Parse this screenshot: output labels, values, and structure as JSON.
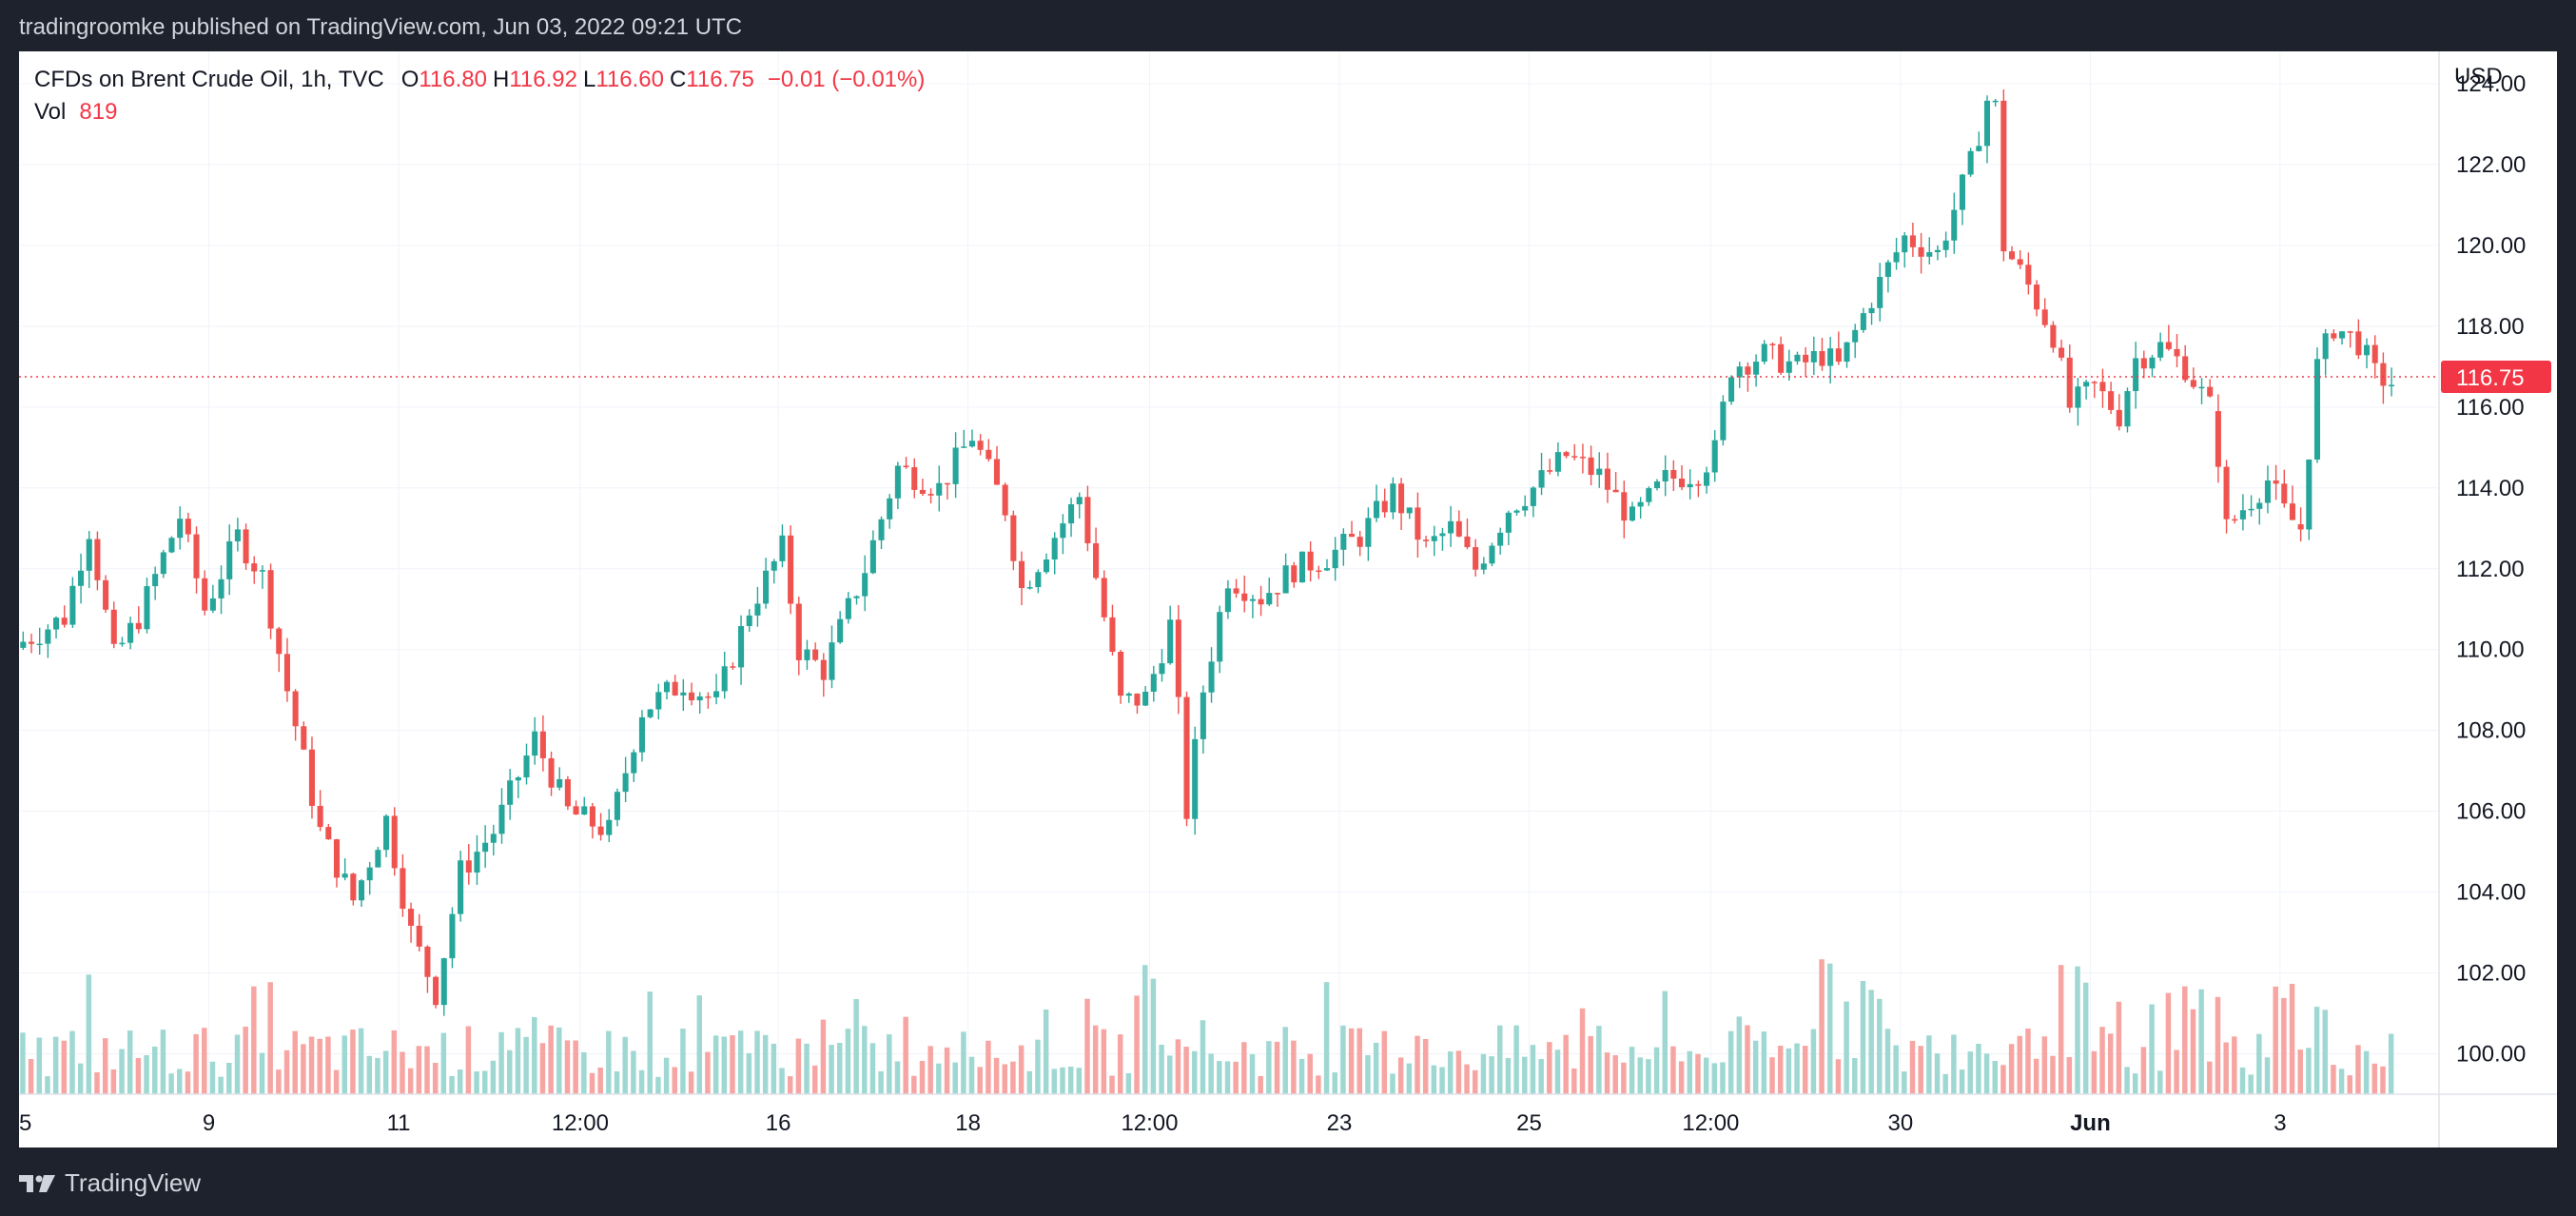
{
  "header": {
    "published_text": "tradingroomke published on TradingView.com, Jun 03, 2022 09:21 UTC"
  },
  "legend": {
    "symbol": "CFDs on Brent Crude Oil, 1h, TVC",
    "open_label": "O",
    "open": "116.80",
    "high_label": "H",
    "high": "116.92",
    "low_label": "L",
    "low": "116.60",
    "close_label": "C",
    "close": "116.75",
    "change": "−0.01 (−0.01%)",
    "vol_label": "Vol",
    "vol": "819"
  },
  "footer": {
    "brand": "TradingView"
  },
  "colors": {
    "up": "#26a69a",
    "down": "#ef5350",
    "up_vol": "#9fd8d2",
    "down_vol": "#f6a5a2",
    "grid": "#f0f3fa",
    "last_price": "#f23645"
  },
  "chart_data": {
    "type": "candlestick",
    "title": "CFDs on Brent Crude Oil, 1h, TVC",
    "currency": "USD",
    "last_price": 116.75,
    "last_price_label": "116.75",
    "ylim": [
      99.0,
      124.8
    ],
    "y_ticks": [
      "124.00",
      "122.00",
      "120.00",
      "118.00",
      "116.00",
      "114.00",
      "112.00",
      "110.00",
      "108.00",
      "106.00",
      "104.00",
      "102.00",
      "100.00"
    ],
    "x_ticks": [
      {
        "label": "5",
        "bar": 0
      },
      {
        "label": "9",
        "bar": 23
      },
      {
        "label": "11",
        "bar": 46
      },
      {
        "label": "12:00",
        "bar": 68
      },
      {
        "label": "16",
        "bar": 92
      },
      {
        "label": "18",
        "bar": 115
      },
      {
        "label": "12:00",
        "bar": 137
      },
      {
        "label": "23",
        "bar": 160
      },
      {
        "label": "25",
        "bar": 183
      },
      {
        "label": "12:00",
        "bar": 205
      },
      {
        "label": "30",
        "bar": 228
      },
      {
        "label": "Jun",
        "bar": 251
      },
      {
        "label": "3",
        "bar": 274
      }
    ],
    "anchors": [
      [
        0,
        110.2
      ],
      [
        5,
        110.8
      ],
      [
        8,
        113.0
      ],
      [
        11,
        109.8
      ],
      [
        14,
        110.8
      ],
      [
        19,
        113.3
      ],
      [
        22,
        111.0
      ],
      [
        26,
        112.8
      ],
      [
        29,
        111.8
      ],
      [
        32,
        109.0
      ],
      [
        36,
        105.5
      ],
      [
        40,
        103.8
      ],
      [
        44,
        105.8
      ],
      [
        47,
        103.0
      ],
      [
        50,
        101.5
      ],
      [
        53,
        104.5
      ],
      [
        57,
        105.5
      ],
      [
        62,
        107.8
      ],
      [
        66,
        106.0
      ],
      [
        71,
        105.5
      ],
      [
        75,
        108.5
      ],
      [
        80,
        109.2
      ],
      [
        84,
        108.7
      ],
      [
        88,
        111.0
      ],
      [
        92,
        112.5
      ],
      [
        94,
        110.0
      ],
      [
        97,
        109.5
      ],
      [
        102,
        112.0
      ],
      [
        106,
        114.5
      ],
      [
        111,
        114.0
      ],
      [
        115,
        115.3
      ],
      [
        119,
        113.5
      ],
      [
        121,
        111.5
      ],
      [
        124,
        112.5
      ],
      [
        128,
        113.8
      ],
      [
        131,
        110.8
      ],
      [
        133,
        108.7
      ],
      [
        136,
        108.8
      ],
      [
        139,
        110.6
      ],
      [
        140,
        108.5
      ],
      [
        141,
        106.0
      ],
      [
        143,
        109.0
      ],
      [
        146,
        111.8
      ],
      [
        150,
        111.3
      ],
      [
        154,
        112.0
      ],
      [
        158,
        112.3
      ],
      [
        162,
        112.8
      ],
      [
        166,
        113.9
      ],
      [
        170,
        112.5
      ],
      [
        173,
        113.0
      ],
      [
        176,
        112.0
      ],
      [
        180,
        113.5
      ],
      [
        183,
        114.0
      ],
      [
        187,
        114.8
      ],
      [
        191,
        114.3
      ],
      [
        195,
        113.2
      ],
      [
        199,
        114.2
      ],
      [
        203,
        114.4
      ],
      [
        205,
        114.9
      ],
      [
        207,
        117.0
      ],
      [
        211,
        117.3
      ],
      [
        215,
        117.0
      ],
      [
        218,
        117.3
      ],
      [
        220,
        117.0
      ],
      [
        224,
        118.7
      ],
      [
        228,
        120.2
      ],
      [
        232,
        119.8
      ],
      [
        236,
        122.0
      ],
      [
        238,
        123.6
      ],
      [
        239,
        123.4
      ],
      [
        240,
        120.0
      ],
      [
        243,
        119.0
      ],
      [
        246,
        117.8
      ],
      [
        248,
        116.0
      ],
      [
        251,
        116.5
      ],
      [
        254,
        115.8
      ],
      [
        256,
        117.2
      ],
      [
        259,
        117.5
      ],
      [
        262,
        117.0
      ],
      [
        265,
        116.0
      ],
      [
        266,
        114.8
      ],
      [
        267,
        113.0
      ],
      [
        269,
        113.5
      ],
      [
        272,
        114.2
      ],
      [
        274,
        113.4
      ],
      [
        276,
        113.0
      ],
      [
        278,
        117.0
      ],
      [
        280,
        118.0
      ],
      [
        283,
        117.6
      ],
      [
        285,
        116.8
      ],
      [
        287,
        116.6
      ]
    ],
    "gaps": [
      266,
      276
    ],
    "total_bars": 288,
    "volume_note": "Relative hourly volume bars along the bottom of the price pane"
  }
}
